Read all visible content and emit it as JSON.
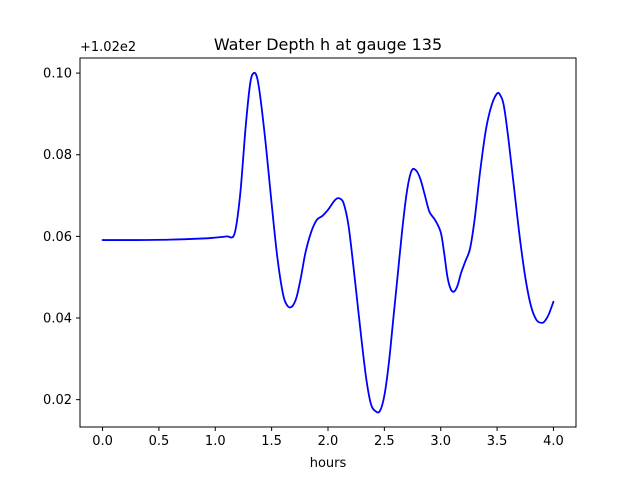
{
  "chart_data": {
    "type": "line",
    "title": "Water Depth h at gauge 135",
    "xlabel": "hours",
    "ylabel": "",
    "y_offset_label": "+1.02e2",
    "xlim": [
      -0.2,
      4.2
    ],
    "ylim": [
      0.0133,
      0.1037
    ],
    "xticks": [
      0.0,
      0.5,
      1.0,
      1.5,
      2.0,
      2.5,
      3.0,
      3.5,
      4.0
    ],
    "xtick_labels": [
      "0.0",
      "0.5",
      "1.0",
      "1.5",
      "2.0",
      "2.5",
      "3.0",
      "3.5",
      "4.0"
    ],
    "yticks": [
      0.02,
      0.04,
      0.06,
      0.08,
      0.1
    ],
    "ytick_labels": [
      "0.02",
      "0.04",
      "0.06",
      "0.08",
      "0.10"
    ],
    "grid": false,
    "series": [
      {
        "color": "#0000ff",
        "x": [
          0.0,
          0.3,
          0.6,
          0.9,
          1.0,
          1.1,
          1.17,
          1.22,
          1.27,
          1.31,
          1.34,
          1.37,
          1.4,
          1.45,
          1.5,
          1.55,
          1.6,
          1.64,
          1.68,
          1.72,
          1.76,
          1.8,
          1.85,
          1.9,
          1.95,
          2.0,
          2.05,
          2.08,
          2.11,
          2.14,
          2.18,
          2.22,
          2.26,
          2.3,
          2.34,
          2.38,
          2.42,
          2.46,
          2.5,
          2.54,
          2.58,
          2.62,
          2.66,
          2.7,
          2.74,
          2.78,
          2.82,
          2.86,
          2.9,
          2.95,
          3.0,
          3.03,
          3.06,
          3.09,
          3.12,
          3.15,
          3.18,
          3.22,
          3.26,
          3.3,
          3.35,
          3.4,
          3.45,
          3.5,
          3.53,
          3.56,
          3.6,
          3.65,
          3.7,
          3.75,
          3.8,
          3.85,
          3.9,
          3.93,
          3.96,
          4.0
        ],
        "y": [
          0.0591,
          0.0591,
          0.0592,
          0.0595,
          0.0597,
          0.06,
          0.0606,
          0.07,
          0.087,
          0.0975,
          0.1,
          0.099,
          0.094,
          0.082,
          0.068,
          0.055,
          0.046,
          0.043,
          0.0428,
          0.045,
          0.05,
          0.056,
          0.061,
          0.064,
          0.065,
          0.0665,
          0.0685,
          0.0693,
          0.0692,
          0.068,
          0.063,
          0.054,
          0.044,
          0.034,
          0.025,
          0.019,
          0.0172,
          0.0172,
          0.021,
          0.029,
          0.04,
          0.051,
          0.062,
          0.071,
          0.076,
          0.0762,
          0.074,
          0.07,
          0.066,
          0.064,
          0.061,
          0.056,
          0.05,
          0.047,
          0.0465,
          0.048,
          0.051,
          0.054,
          0.057,
          0.064,
          0.076,
          0.086,
          0.092,
          0.095,
          0.0945,
          0.092,
          0.084,
          0.072,
          0.06,
          0.05,
          0.043,
          0.0395,
          0.0388,
          0.0395,
          0.041,
          0.044
        ]
      }
    ]
  }
}
